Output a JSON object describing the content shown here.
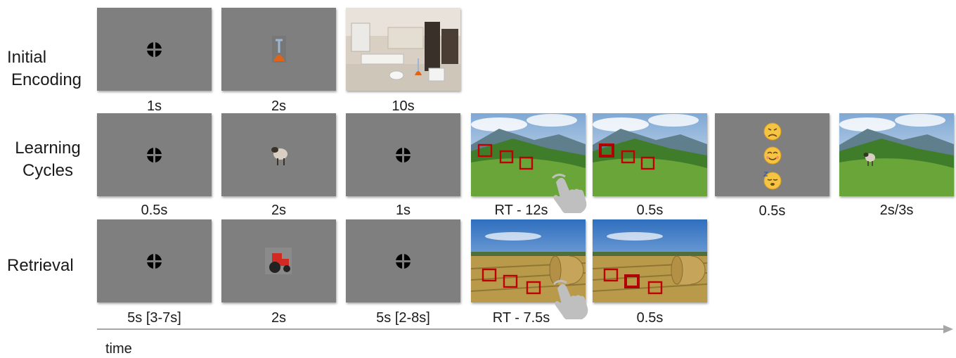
{
  "rows": {
    "initial": {
      "label_line1": "Initial",
      "label_line2": "Encoding",
      "captions": [
        "1s",
        "2s",
        "10s"
      ]
    },
    "learning": {
      "label_line1": "Learning",
      "label_line2": "Cycles",
      "captions": [
        "0.5s",
        "2s",
        "1s",
        "RT - 12s",
        "0.5s",
        "0.5s",
        "2s/3s"
      ]
    },
    "retrieval": {
      "label": "Retrieval",
      "captions": [
        "5s [3-7s]",
        "2s",
        "5s [2-8s]",
        "RT - 7.5s",
        "0.5s"
      ]
    }
  },
  "axis": {
    "label": "time"
  },
  "colors": {
    "panel_gray": "#7f7f7f",
    "target_box": "#c00000",
    "axis_line": "#a6a6a6"
  },
  "icons": [
    "fixation-cross-icon",
    "plunger-icon",
    "sheep-icon",
    "tractor-icon",
    "touch-hand-icon",
    "sad-face-icon",
    "smile-face-icon",
    "sleepy-face-icon"
  ]
}
